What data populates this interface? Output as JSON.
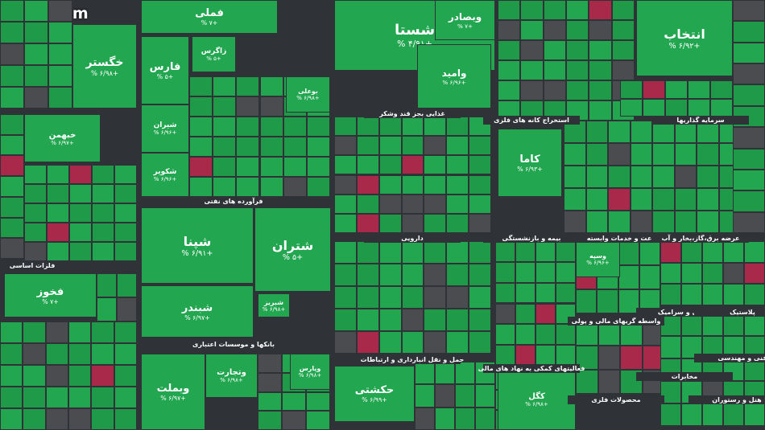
{
  "watermark": "ejiga.com",
  "sectors": [
    {
      "label": "فلزات اساسی"
    },
    {
      "label": "فرآورده های نفتی"
    },
    {
      "label": "غذایی بجز قند وشکر"
    },
    {
      "label": "استخراج کانه های فلزی"
    },
    {
      "label": "سرمایه گذاریها"
    },
    {
      "label": "بانکها و موسسات اعتباری"
    },
    {
      "label": "دارویی"
    },
    {
      "label": "بیمه و بازنشستگی"
    },
    {
      "label": "زراعت و خدمات وابسته"
    },
    {
      "label": "عرضه برق،گاز،بخار و آب"
    },
    {
      "label": "حمل و نقل انبارداری و ارتباطات"
    },
    {
      "label": "فعالیتهای کمکی به نهاد های مالی"
    },
    {
      "label": "واسطه گریهای مالی و پولی"
    },
    {
      "label": "کاشی و سرامیک"
    },
    {
      "label": "پلاستیک"
    },
    {
      "label": "مخابرات"
    },
    {
      "label": "فنی و مهندسی"
    },
    {
      "label": "محصولات فلزی"
    },
    {
      "label": "هتل و رستوران"
    }
  ],
  "tiles": [
    {
      "name": "خگستر",
      "change": "+۶/۹۸ %"
    },
    {
      "name": "انتخاب",
      "change": "+۶/۹۲ %"
    },
    {
      "name": "شستا",
      "change": "+۴/۹۱ %"
    },
    {
      "name": "وامید",
      "change": "+۶/۹۶ %"
    },
    {
      "name": "فارس",
      "change": "+۵ %"
    },
    {
      "name": "زاگرس",
      "change": "+۵ %"
    },
    {
      "name": "شپنا",
      "change": "+۶/۹۱ %"
    },
    {
      "name": "شتران",
      "change": "+۵ %"
    },
    {
      "name": "شبندر",
      "change": "+۶/۹۷ %"
    },
    {
      "name": "فخوز",
      "change": "+۷ %"
    },
    {
      "name": "خبهمن",
      "change": "+۶/۹۷ %"
    },
    {
      "name": "کاما",
      "change": "+۶/۹۳ %"
    },
    {
      "name": "حکشتی",
      "change": "+۶/۹۹ %"
    },
    {
      "name": "وبملت",
      "change": "+۶/۹۷ %"
    },
    {
      "name": "وتجارت",
      "change": "+۶/۹۸ %"
    },
    {
      "name": "شبریز",
      "change": "+۶/۹۸ %"
    },
    {
      "name": "وپارس",
      "change": "+۶/۹۸ %"
    },
    {
      "name": "فملی",
      "change": "+۷ %"
    },
    {
      "name": "وبصادر",
      "change": "+۷ %"
    },
    {
      "name": "شیران",
      "change": "+۶/۹۶ %"
    },
    {
      "name": "شکویر",
      "change": "+۶/۹۶ %"
    },
    {
      "name": "کگل",
      "change": "+۶/۹۸ %"
    },
    {
      "name": "وسپه",
      "change": "+۶/۹۶ %"
    },
    {
      "name": "بوعلی",
      "change": "+۶/۹۸ %"
    }
  ]
}
